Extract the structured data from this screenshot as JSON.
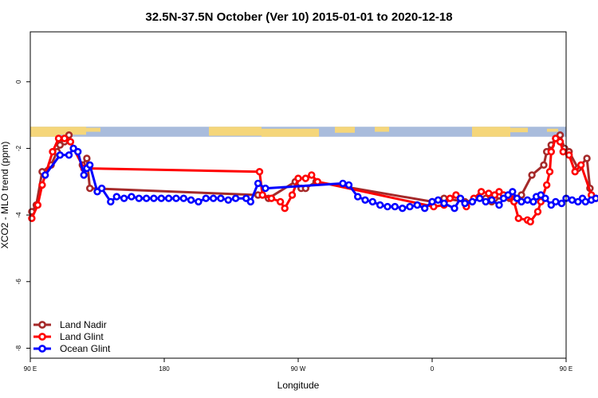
{
  "chart_data": {
    "type": "line",
    "title": "32.5N-37.5N October (Ver 10)   2015-01-01 to 2020-12-18",
    "xlabel": "Longitude",
    "ylabel": "XCO2 - MLO trend (ppm)",
    "xlim": [
      90,
      450
    ],
    "ylim": [
      -8.3,
      1.5
    ],
    "x_ticks": [
      {
        "value": 90,
        "label": "90 E"
      },
      {
        "value": 180,
        "label": "180"
      },
      {
        "value": 270,
        "label": "90 W"
      },
      {
        "value": 360,
        "label": "0"
      },
      {
        "value": 450,
        "label": "90 E"
      },
      {
        "value": 540,
        "label": "180"
      }
    ],
    "y_ticks": [
      {
        "value": 0,
        "label": "0"
      },
      {
        "value": -2,
        "label": "-2"
      },
      {
        "value": -4,
        "label": "-4"
      },
      {
        "value": -6,
        "label": "-6"
      },
      {
        "value": -8,
        "label": "-8"
      }
    ],
    "map_strip": {
      "y_top": -1.35,
      "y_bottom": -1.65,
      "ocean_color": "#a9bcdc",
      "land_color": "#f5d67a"
    },
    "legend_position": "bottom-left",
    "series": [
      {
        "name": "Land Nadir",
        "color": "#a52a2a",
        "points": [
          [
            91,
            -3.9
          ],
          [
            94,
            -3.7
          ],
          [
            98,
            -2.7
          ],
          [
            104,
            -2.5
          ],
          [
            108,
            -2.1
          ],
          [
            110,
            -1.9
          ],
          [
            113,
            -1.8
          ],
          [
            116,
            -1.6
          ],
          [
            119,
            -2.0
          ],
          [
            125,
            -2.5
          ],
          [
            128,
            -2.3
          ],
          [
            130,
            -3.2
          ],
          [
            243,
            -3.4
          ],
          [
            250,
            -3.5
          ],
          [
            268,
            -3.0
          ],
          [
            272,
            -3.2
          ],
          [
            275,
            -3.2
          ],
          [
            282,
            -3.0
          ],
          [
            360,
            -3.6
          ],
          [
            368,
            -3.5
          ],
          [
            382,
            -3.6
          ],
          [
            396,
            -3.5
          ],
          [
            400,
            -3.6
          ],
          [
            402,
            -3.5
          ],
          [
            412,
            -3.5
          ],
          [
            416,
            -3.5
          ],
          [
            420,
            -3.4
          ],
          [
            427,
            -2.8
          ],
          [
            435,
            -2.5
          ],
          [
            437,
            -2.1
          ],
          [
            440,
            -1.9
          ],
          [
            443,
            -1.7
          ],
          [
            446,
            -1.6
          ],
          [
            449,
            -2.0
          ],
          [
            452,
            -2.1
          ],
          [
            458,
            -2.6
          ],
          [
            464,
            -2.3
          ],
          [
            466,
            -3.2
          ]
        ]
      },
      {
        "name": "Land Glint",
        "color": "#ff0000",
        "points": [
          [
            91,
            -4.1
          ],
          [
            95,
            -3.7
          ],
          [
            98,
            -3.1
          ],
          [
            105,
            -2.1
          ],
          [
            109,
            -1.7
          ],
          [
            113,
            -1.7
          ],
          [
            117,
            -1.8
          ],
          [
            126,
            -2.6
          ],
          [
            244,
            -2.7
          ],
          [
            246,
            -3.4
          ],
          [
            252,
            -3.5
          ],
          [
            258,
            -3.6
          ],
          [
            261,
            -3.8
          ],
          [
            266,
            -3.4
          ],
          [
            270,
            -2.9
          ],
          [
            275,
            -2.9
          ],
          [
            279,
            -2.8
          ],
          [
            283,
            -3.0
          ],
          [
            361,
            -3.75
          ],
          [
            368,
            -3.7
          ],
          [
            372,
            -3.5
          ],
          [
            376,
            -3.4
          ],
          [
            383,
            -3.75
          ],
          [
            388,
            -3.5
          ],
          [
            393,
            -3.3
          ],
          [
            398,
            -3.35
          ],
          [
            402,
            -3.4
          ],
          [
            405,
            -3.3
          ],
          [
            408,
            -3.4
          ],
          [
            412,
            -3.45
          ],
          [
            415,
            -3.6
          ],
          [
            418,
            -4.1
          ],
          [
            424,
            -4.15
          ],
          [
            426,
            -4.2
          ],
          [
            431,
            -3.9
          ],
          [
            433,
            -3.6
          ],
          [
            437,
            -3.1
          ],
          [
            439,
            -2.7
          ],
          [
            440,
            -2.1
          ],
          [
            443,
            -1.7
          ],
          [
            446,
            -1.8
          ],
          [
            448,
            -2.1
          ],
          [
            452,
            -2.2
          ],
          [
            456,
            -2.7
          ],
          [
            460,
            -2.5
          ],
          [
            467,
            -3.4
          ],
          [
            470,
            -3.5
          ]
        ]
      },
      {
        "name": "Ocean Glint",
        "color": "#0000ff",
        "points": [
          [
            100,
            -2.8
          ],
          [
            110,
            -2.2
          ],
          [
            116,
            -2.2
          ],
          [
            119,
            -2.0
          ],
          [
            122,
            -2.1
          ],
          [
            126,
            -2.8
          ],
          [
            128,
            -2.6
          ],
          [
            130,
            -2.5
          ],
          [
            135,
            -3.3
          ],
          [
            138,
            -3.2
          ],
          [
            144,
            -3.6
          ],
          [
            148,
            -3.45
          ],
          [
            153,
            -3.5
          ],
          [
            158,
            -3.45
          ],
          [
            163,
            -3.5
          ],
          [
            168,
            -3.5
          ],
          [
            173,
            -3.5
          ],
          [
            178,
            -3.5
          ],
          [
            183,
            -3.5
          ],
          [
            188,
            -3.5
          ],
          [
            193,
            -3.5
          ],
          [
            198,
            -3.55
          ],
          [
            203,
            -3.6
          ],
          [
            208,
            -3.5
          ],
          [
            213,
            -3.5
          ],
          [
            218,
            -3.5
          ],
          [
            223,
            -3.55
          ],
          [
            228,
            -3.5
          ],
          [
            235,
            -3.5
          ],
          [
            238,
            -3.6
          ],
          [
            243,
            -3.05
          ],
          [
            248,
            -3.2
          ],
          [
            300,
            -3.05
          ],
          [
            304,
            -3.1
          ],
          [
            310,
            -3.45
          ],
          [
            315,
            -3.55
          ],
          [
            320,
            -3.6
          ],
          [
            325,
            -3.7
          ],
          [
            330,
            -3.75
          ],
          [
            335,
            -3.75
          ],
          [
            340,
            -3.8
          ],
          [
            345,
            -3.75
          ],
          [
            350,
            -3.7
          ],
          [
            355,
            -3.8
          ],
          [
            360,
            -3.6
          ],
          [
            364,
            -3.55
          ],
          [
            368,
            -3.65
          ],
          [
            375,
            -3.8
          ],
          [
            379,
            -3.5
          ],
          [
            382,
            -3.65
          ],
          [
            387,
            -3.6
          ],
          [
            392,
            -3.5
          ],
          [
            396,
            -3.6
          ],
          [
            400,
            -3.55
          ],
          [
            405,
            -3.7
          ],
          [
            408,
            -3.5
          ],
          [
            411,
            -3.4
          ],
          [
            414,
            -3.3
          ],
          [
            417,
            -3.5
          ],
          [
            420,
            -3.6
          ],
          [
            424,
            -3.55
          ],
          [
            428,
            -3.6
          ],
          [
            430,
            -3.45
          ],
          [
            433,
            -3.4
          ],
          [
            436,
            -3.5
          ],
          [
            440,
            -3.7
          ],
          [
            443,
            -3.6
          ],
          [
            447,
            -3.65
          ],
          [
            450,
            -3.5
          ],
          [
            454,
            -3.55
          ],
          [
            458,
            -3.6
          ],
          [
            461,
            -3.5
          ],
          [
            463,
            -3.6
          ],
          [
            467,
            -3.55
          ],
          [
            470,
            -3.5
          ]
        ]
      }
    ]
  }
}
